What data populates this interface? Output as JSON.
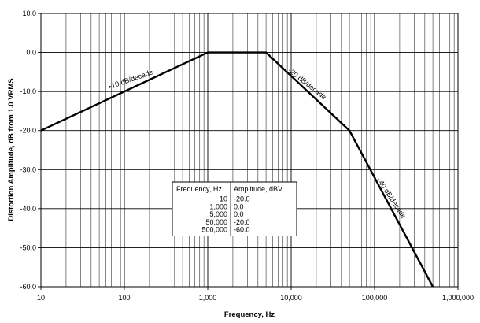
{
  "chart_data": {
    "type": "line",
    "title": "",
    "xlabel": "Frequency, Hz",
    "ylabel": "Distortion Amplitude, dB from 1.0 VRMS",
    "xscale": "log",
    "xlim": [
      10,
      1000000
    ],
    "ylim": [
      -60,
      10
    ],
    "grid": true,
    "x_ticks": [
      {
        "value": 10,
        "label": "10"
      },
      {
        "value": 100,
        "label": "100"
      },
      {
        "value": 1000,
        "label": "1,000"
      },
      {
        "value": 10000,
        "label": "10,000"
      },
      {
        "value": 100000,
        "label": "100,000"
      },
      {
        "value": 1000000,
        "label": "1,000,000"
      }
    ],
    "y_ticks": [
      {
        "value": 10,
        "label": "10.0"
      },
      {
        "value": 0,
        "label": "0.0"
      },
      {
        "value": -10,
        "label": "-10.0"
      },
      {
        "value": -20,
        "label": "-20.0"
      },
      {
        "value": -30,
        "label": "-30.0"
      },
      {
        "value": -40,
        "label": "-40.0"
      },
      {
        "value": -50,
        "label": "-50.0"
      },
      {
        "value": -60,
        "label": "-60.0"
      }
    ],
    "series": [
      {
        "x": [
          10,
          1000,
          5000,
          50000,
          500000
        ],
        "y": [
          -20,
          0,
          0,
          -20,
          -60
        ]
      }
    ],
    "annotations": [
      {
        "text": "+10 dB/decade",
        "x": 120,
        "y": -7.5,
        "angle": -19
      },
      {
        "text": "-20 dB/decade",
        "x": 15000,
        "y": -8.5,
        "angle": 38
      },
      {
        "text": "- 40 dB/decade",
        "x": 150000,
        "y": -37.5,
        "angle": 57
      }
    ],
    "table": {
      "headers": [
        "Frequency, Hz",
        "Amplitude, dBV"
      ],
      "rows": [
        [
          "10",
          "-20.0"
        ],
        [
          "1,000",
          "0.0"
        ],
        [
          "5,000",
          "0.0"
        ],
        [
          "50,000",
          "-20.0"
        ],
        [
          "500,000",
          "-60.0"
        ]
      ]
    },
    "colors": {
      "line": "#000000",
      "grid": "#333333",
      "background": "#ffffff"
    }
  }
}
